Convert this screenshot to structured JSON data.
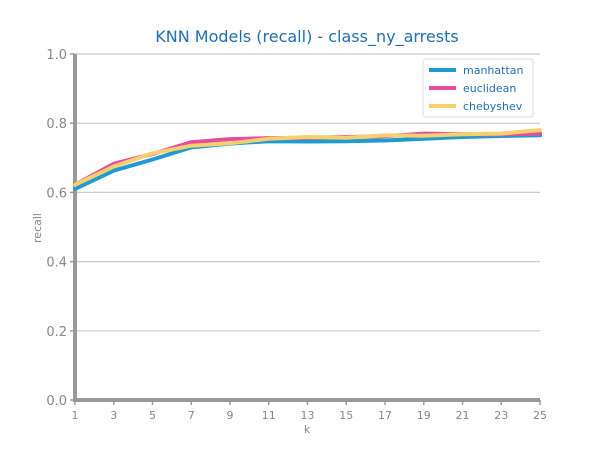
{
  "colors": {
    "title": "#1f6fb5",
    "tick": "#888888",
    "axis": "#999999",
    "grid": "#cccccc",
    "legend_text": "#1f6fb5",
    "legend_border": "#dddddd"
  },
  "chart_data": {
    "type": "line",
    "title": "KNN Models (recall) - class_ny_arrests",
    "xlabel": "k",
    "ylabel": "recall",
    "x": [
      1,
      3,
      5,
      7,
      9,
      11,
      13,
      15,
      17,
      19,
      21,
      23,
      25
    ],
    "xlim": [
      1,
      25
    ],
    "ylim": [
      0.0,
      1.0
    ],
    "xticks": [
      "1",
      "3",
      "5",
      "7",
      "9",
      "11",
      "13",
      "15",
      "17",
      "19",
      "21",
      "23",
      "25"
    ],
    "yticks": [
      "0.0",
      "0.2",
      "0.4",
      "0.6",
      "0.8",
      "1.0"
    ],
    "grid": "horizontal",
    "legend_position": "top-right",
    "series": [
      {
        "name": "manhattan",
        "color": "#1f9bd1",
        "values": [
          0.61,
          0.663,
          0.695,
          0.73,
          0.741,
          0.748,
          0.747,
          0.748,
          0.75,
          0.755,
          0.76,
          0.763,
          0.765
        ]
      },
      {
        "name": "euclidean",
        "color": "#e84c9c",
        "values": [
          0.622,
          0.683,
          0.711,
          0.745,
          0.754,
          0.757,
          0.758,
          0.76,
          0.762,
          0.77,
          0.768,
          0.768,
          0.77
        ]
      },
      {
        "name": "chebyshev",
        "color": "#f5d06f",
        "values": [
          0.622,
          0.675,
          0.713,
          0.735,
          0.742,
          0.755,
          0.76,
          0.758,
          0.765,
          0.764,
          0.768,
          0.77,
          0.78
        ]
      }
    ]
  }
}
